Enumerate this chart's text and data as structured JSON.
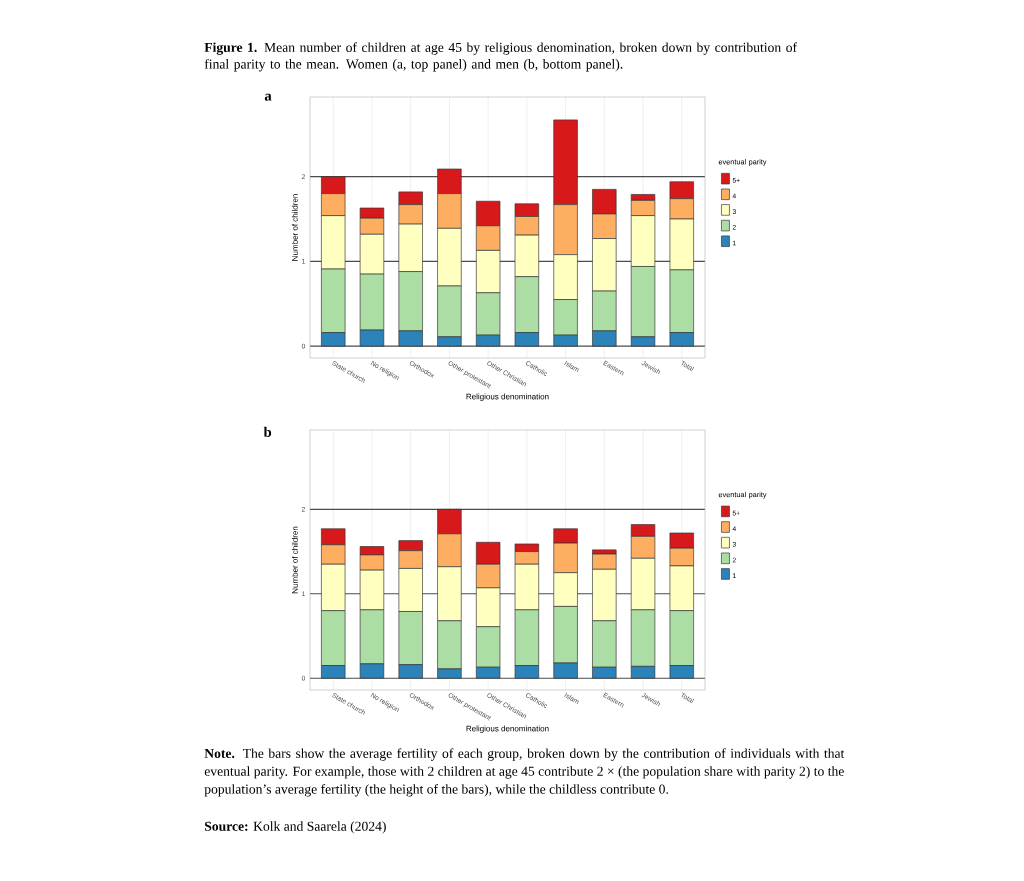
{
  "chart_data": [
    {
      "type": "bar",
      "stacked": true,
      "title": "a",
      "annotations": [
        "**Figure 1.** Mean number of children at age 45 by religious denomination, broken down by contribution of final parity to the mean. Women (a, top panel) and men (b, bottom panel)."
      ],
      "xlabel": "Religious denomination",
      "ylabel": "Number of children",
      "legend_title": "eventual parity",
      "legend": "right",
      "grid": true,
      "categories": [
        "State church",
        "No religion",
        "Orthodox",
        "Other protestant",
        "Other Christian",
        "Catholic",
        "Islam",
        "Eastern",
        "Jewish",
        "Total"
      ],
      "ylim": [
        -0.14,
        2.94
      ],
      "yticks": [
        0,
        1,
        2
      ],
      "series": [
        {
          "name": "1",
          "color": "#2b83ba",
          "values": [
            0.16,
            0.19,
            0.18,
            0.11,
            0.13,
            0.16,
            0.13,
            0.18,
            0.11,
            0.16
          ]
        },
        {
          "name": "2",
          "color": "#abdda4",
          "values": [
            0.75,
            0.66,
            0.7,
            0.6,
            0.5,
            0.66,
            0.42,
            0.47,
            0.83,
            0.74
          ]
        },
        {
          "name": "3",
          "color": "#ffffbf",
          "values": [
            0.63,
            0.47,
            0.56,
            0.68,
            0.5,
            0.49,
            0.53,
            0.62,
            0.6,
            0.6
          ]
        },
        {
          "name": "4",
          "color": "#fdae61",
          "values": [
            0.26,
            0.19,
            0.23,
            0.41,
            0.29,
            0.22,
            0.59,
            0.29,
            0.18,
            0.24
          ]
        },
        {
          "name": "5+",
          "color": "#d7191c",
          "values": [
            0.2,
            0.12,
            0.15,
            0.29,
            0.29,
            0.15,
            1.0,
            0.29,
            0.07,
            0.2
          ]
        }
      ]
    },
    {
      "type": "bar",
      "stacked": true,
      "title": "b",
      "annotations": [
        "**Note.** The bars show the average fertility of each group, broken down by the contribution of individuals with that eventual parity. For example, those with 2 children at age 45 contribute 2 × (the population share with parity 2) to the population’s average fertility (the height of the bars), while the childless contribute 0.",
        "**Source:** Kolk and Saarela (2024)"
      ],
      "xlabel": "Religious denomination",
      "ylabel": "Number of children",
      "legend_title": "eventual parity",
      "legend": "right",
      "grid": true,
      "categories": [
        "State church",
        "No religion",
        "Orthodox",
        "Other protestant",
        "Other Christian",
        "Catholic",
        "Islam",
        "Eastern",
        "Jewish",
        "Total"
      ],
      "ylim": [
        -0.14,
        2.94
      ],
      "yticks": [
        0,
        1,
        2
      ],
      "series": [
        {
          "name": "1",
          "color": "#2b83ba",
          "values": [
            0.15,
            0.17,
            0.16,
            0.11,
            0.13,
            0.15,
            0.18,
            0.13,
            0.14,
            0.15
          ]
        },
        {
          "name": "2",
          "color": "#abdda4",
          "values": [
            0.65,
            0.64,
            0.63,
            0.57,
            0.48,
            0.66,
            0.67,
            0.55,
            0.67,
            0.65
          ]
        },
        {
          "name": "3",
          "color": "#ffffbf",
          "values": [
            0.55,
            0.47,
            0.51,
            0.64,
            0.46,
            0.54,
            0.4,
            0.61,
            0.61,
            0.53
          ]
        },
        {
          "name": "4",
          "color": "#fdae61",
          "values": [
            0.23,
            0.18,
            0.21,
            0.39,
            0.28,
            0.15,
            0.35,
            0.18,
            0.26,
            0.21
          ]
        },
        {
          "name": "5+",
          "color": "#d7191c",
          "values": [
            0.19,
            0.1,
            0.12,
            0.29,
            0.26,
            0.09,
            0.17,
            0.05,
            0.14,
            0.18
          ]
        }
      ]
    }
  ]
}
